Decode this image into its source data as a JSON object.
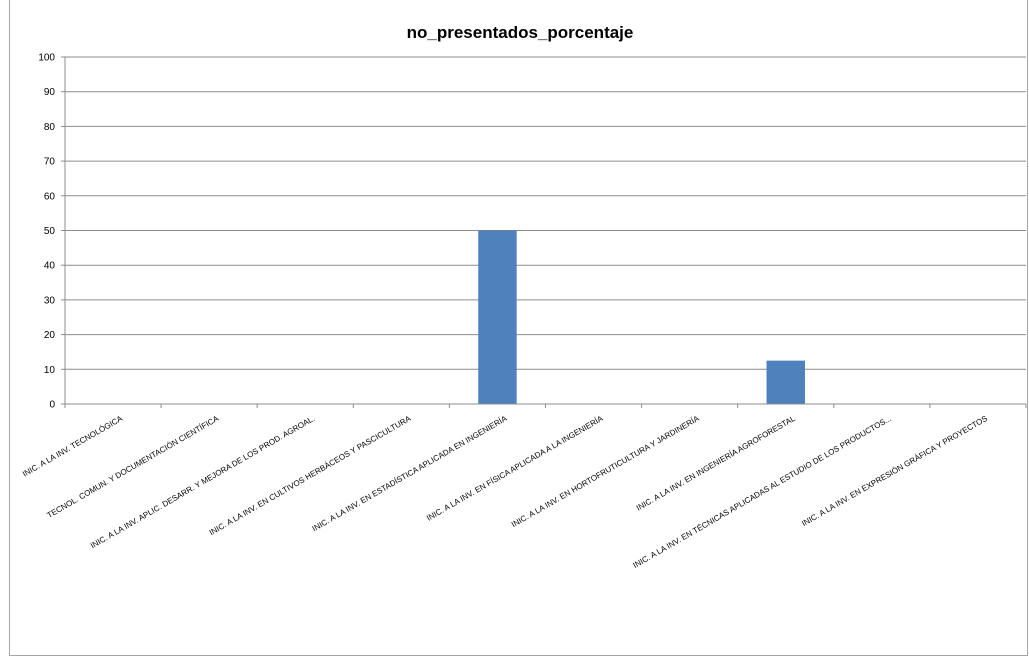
{
  "chart_data": {
    "type": "bar",
    "title": "no_presentados_porcentaje",
    "xlabel": "",
    "ylabel": "",
    "ylim": [
      0,
      100
    ],
    "yticks": [
      0,
      10,
      20,
      30,
      40,
      50,
      60,
      70,
      80,
      90,
      100
    ],
    "grid": true,
    "legend": "none",
    "categories": [
      "INIC. A LA INV. TECNOLÓGICA",
      "TECNOL. COMUN. Y DOCUMENTACIÓN CIENTÍFICA",
      "INIC. A LA INV. APLIC. DESARR. Y MEJORA DE LOS PROD. AGROAL.",
      "INIC. A LA INV. EN CULTIVOS HERBÁCEOS Y PASCICULTURA",
      "INIC. A LA INV. EN ESTADÍSTICA APLICADA EN INGENIERÍA",
      "INIC. A LA INV. EN FÍSICA APLICADA A LA INGENIERÍA",
      "INIC. A LA INV. EN HORTOFRUTICULTURA Y JARDINERÍA",
      "INIC. A LA INV. EN INGENIERÍA AGROFORESTAL",
      "INIC. A LA INV. EN TÉCNICAS APLICADAS AL ESTUDIO DE LOS PRODUCTOS...",
      "INIC. A LA INV. EN EXPRESIÓN GRÁFICA Y PROYECTOS"
    ],
    "values": [
      0,
      0,
      0,
      0,
      50,
      0,
      0,
      12.5,
      0,
      0
    ],
    "bar_color": "#4f81bd",
    "grid_color": "#8c8c8c"
  }
}
